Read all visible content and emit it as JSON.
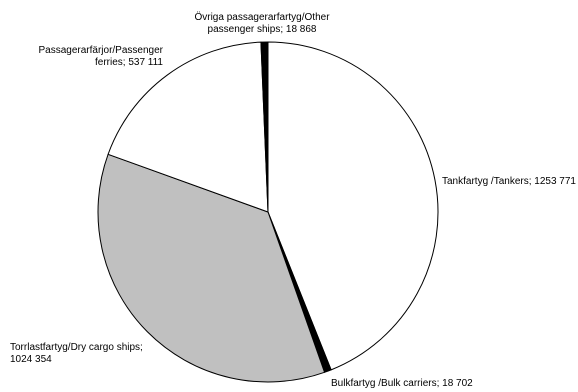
{
  "chart_data": {
    "type": "pie",
    "title": "",
    "start": "top, clockwise",
    "slices": [
      {
        "label_lines": [
          "Tankfartyg /Tankers; 1253 771"
        ],
        "value": 1253771,
        "color": "#ffffff"
      },
      {
        "label_lines": [
          "Bulkfartyg /Bulk carriers; 18 702"
        ],
        "value": 18702,
        "color": "#000000"
      },
      {
        "label_lines": [
          "Torrlastfartyg/Dry cargo ships;",
          "1024 354"
        ],
        "value": 1024354,
        "color": "#c0c0c0"
      },
      {
        "label_lines": [
          "Passagerarfärjor/Passenger",
          "ferries; 537 111"
        ],
        "value": 537111,
        "color": "#ffffff"
      },
      {
        "label_lines": [
          "Övriga passagerarfartyg/Other",
          "passenger ships; 18 868"
        ],
        "value": 18868,
        "color": "#000000"
      }
    ]
  }
}
